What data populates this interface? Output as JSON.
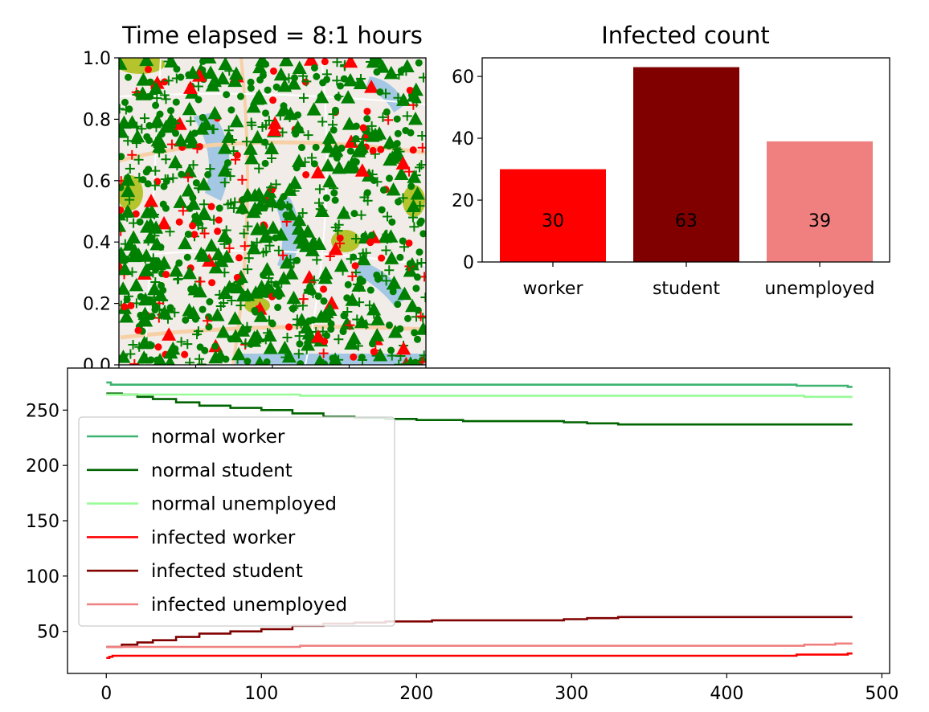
{
  "chart_data": [
    {
      "type": "scatter",
      "title": "Time elapsed = 8:1 hours",
      "xlim": [
        0,
        1
      ],
      "ylim": [
        0,
        1
      ],
      "yticks": [
        "0.0",
        "0.2",
        "0.4",
        "0.6",
        "0.8",
        "1.0"
      ],
      "background": "city map",
      "marker_legend": {
        "worker": "triangle",
        "student": "circle",
        "unemployed": "plus"
      },
      "colors": {
        "normal": "#008000",
        "infected": "#ff0000"
      },
      "series": [
        {
          "group": "worker",
          "status": "normal",
          "count": 272
        },
        {
          "group": "student",
          "status": "normal",
          "count": 237
        },
        {
          "group": "unemployed",
          "status": "normal",
          "count": 262
        },
        {
          "group": "worker",
          "status": "infected",
          "count": 30
        },
        {
          "group": "student",
          "status": "infected",
          "count": 63
        },
        {
          "group": "unemployed",
          "status": "infected",
          "count": 39
        }
      ]
    },
    {
      "type": "bar",
      "title": "Infected count",
      "categories": [
        "worker",
        "student",
        "unemployed"
      ],
      "values": [
        30,
        63,
        39
      ],
      "labels": [
        "30",
        "63",
        "39"
      ],
      "colors": [
        "#ff0000",
        "#800000",
        "#f08080"
      ],
      "ylim": [
        0,
        66
      ],
      "yticks": [
        "0",
        "20",
        "40",
        "60"
      ]
    },
    {
      "type": "line",
      "xlim": [
        -25,
        505
      ],
      "ylim": [
        12,
        288
      ],
      "xticks": [
        "0",
        "100",
        "200",
        "300",
        "400",
        "500"
      ],
      "yticks": [
        "50",
        "100",
        "150",
        "200",
        "250"
      ],
      "legend_position": "center-left",
      "series": [
        {
          "name": "normal worker",
          "color": "#3cb371",
          "points": [
            [
              0,
              275
            ],
            [
              3,
              273
            ],
            [
              150,
              273
            ],
            [
              300,
              273
            ],
            [
              440,
              273
            ],
            [
              445,
              272
            ],
            [
              470,
              272
            ],
            [
              478,
              271
            ],
            [
              481,
              271
            ]
          ]
        },
        {
          "name": "normal student",
          "color": "#006400",
          "points": [
            [
              0,
              265
            ],
            [
              10,
              264
            ],
            [
              20,
              262
            ],
            [
              30,
              260
            ],
            [
              45,
              257
            ],
            [
              60,
              254
            ],
            [
              80,
              252
            ],
            [
              100,
              250
            ],
            [
              120,
              247
            ],
            [
              140,
              244
            ],
            [
              160,
              243
            ],
            [
              180,
              242
            ],
            [
              200,
              241
            ],
            [
              230,
              240
            ],
            [
              260,
              240
            ],
            [
              295,
              239
            ],
            [
              310,
              238
            ],
            [
              330,
              237
            ],
            [
              400,
              237
            ],
            [
              481,
              237
            ]
          ]
        },
        {
          "name": "normal unemployed",
          "color": "#98fb98",
          "points": [
            [
              0,
              264
            ],
            [
              120,
              264
            ],
            [
              125,
              263
            ],
            [
              300,
              263
            ],
            [
              445,
              263
            ],
            [
              450,
              262
            ],
            [
              481,
              262
            ]
          ]
        },
        {
          "name": "infected worker",
          "color": "#ff0000",
          "points": [
            [
              0,
              26
            ],
            [
              2,
              27
            ],
            [
              4,
              28
            ],
            [
              440,
              28
            ],
            [
              445,
              29
            ],
            [
              470,
              29
            ],
            [
              478,
              30
            ],
            [
              481,
              30
            ]
          ]
        },
        {
          "name": "infected student",
          "color": "#800000",
          "points": [
            [
              0,
              36
            ],
            [
              10,
              38
            ],
            [
              20,
              40
            ],
            [
              30,
              42
            ],
            [
              45,
              45
            ],
            [
              60,
              48
            ],
            [
              80,
              50
            ],
            [
              100,
              52
            ],
            [
              120,
              55
            ],
            [
              140,
              57
            ],
            [
              160,
              58
            ],
            [
              180,
              59
            ],
            [
              210,
              60
            ],
            [
              260,
              60
            ],
            [
              295,
              61
            ],
            [
              310,
              62
            ],
            [
              330,
              63
            ],
            [
              400,
              63
            ],
            [
              481,
              63
            ]
          ]
        },
        {
          "name": "infected unemployed",
          "color": "#f08080",
          "points": [
            [
              0,
              36
            ],
            [
              122,
              36
            ],
            [
              125,
              37
            ],
            [
              440,
              37
            ],
            [
              450,
              38
            ],
            [
              465,
              38
            ],
            [
              470,
              39
            ],
            [
              481,
              39
            ]
          ]
        }
      ]
    }
  ]
}
